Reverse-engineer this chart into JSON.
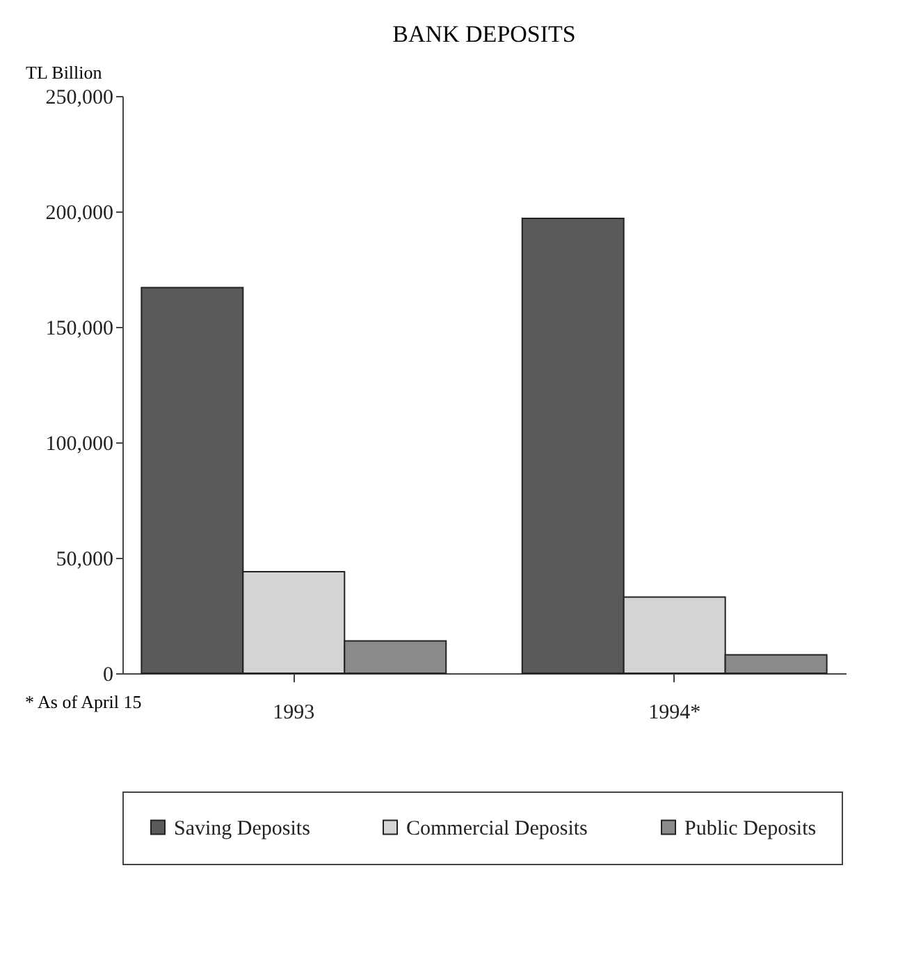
{
  "chart_data": {
    "type": "bar",
    "title": "BANK DEPOSITS",
    "ylabel": "TL Billion",
    "categories": [
      "1993",
      "1994*"
    ],
    "series": [
      {
        "name": "Saving Deposits",
        "color": "#5a5a5a",
        "values": [
          167000,
          197000
        ]
      },
      {
        "name": "Commercial Deposits",
        "color": "#d4d4d4",
        "values": [
          44000,
          33000
        ]
      },
      {
        "name": "Public Deposits",
        "color": "#8a8a8a",
        "values": [
          14000,
          8000
        ]
      }
    ],
    "ylim": [
      0,
      250000
    ],
    "yticks": [
      0,
      {
        "value": 50000,
        "label": "50,000"
      },
      {
        "value": 100000,
        "label": "100,000"
      },
      {
        "value": 150000,
        "label": "150,000"
      },
      {
        "value": 200000,
        "label": "200,000"
      },
      {
        "value": 250000,
        "label": "250,000"
      }
    ],
    "annotations": [
      "* As of April 15"
    ],
    "legend": "bottom",
    "grid": false
  }
}
